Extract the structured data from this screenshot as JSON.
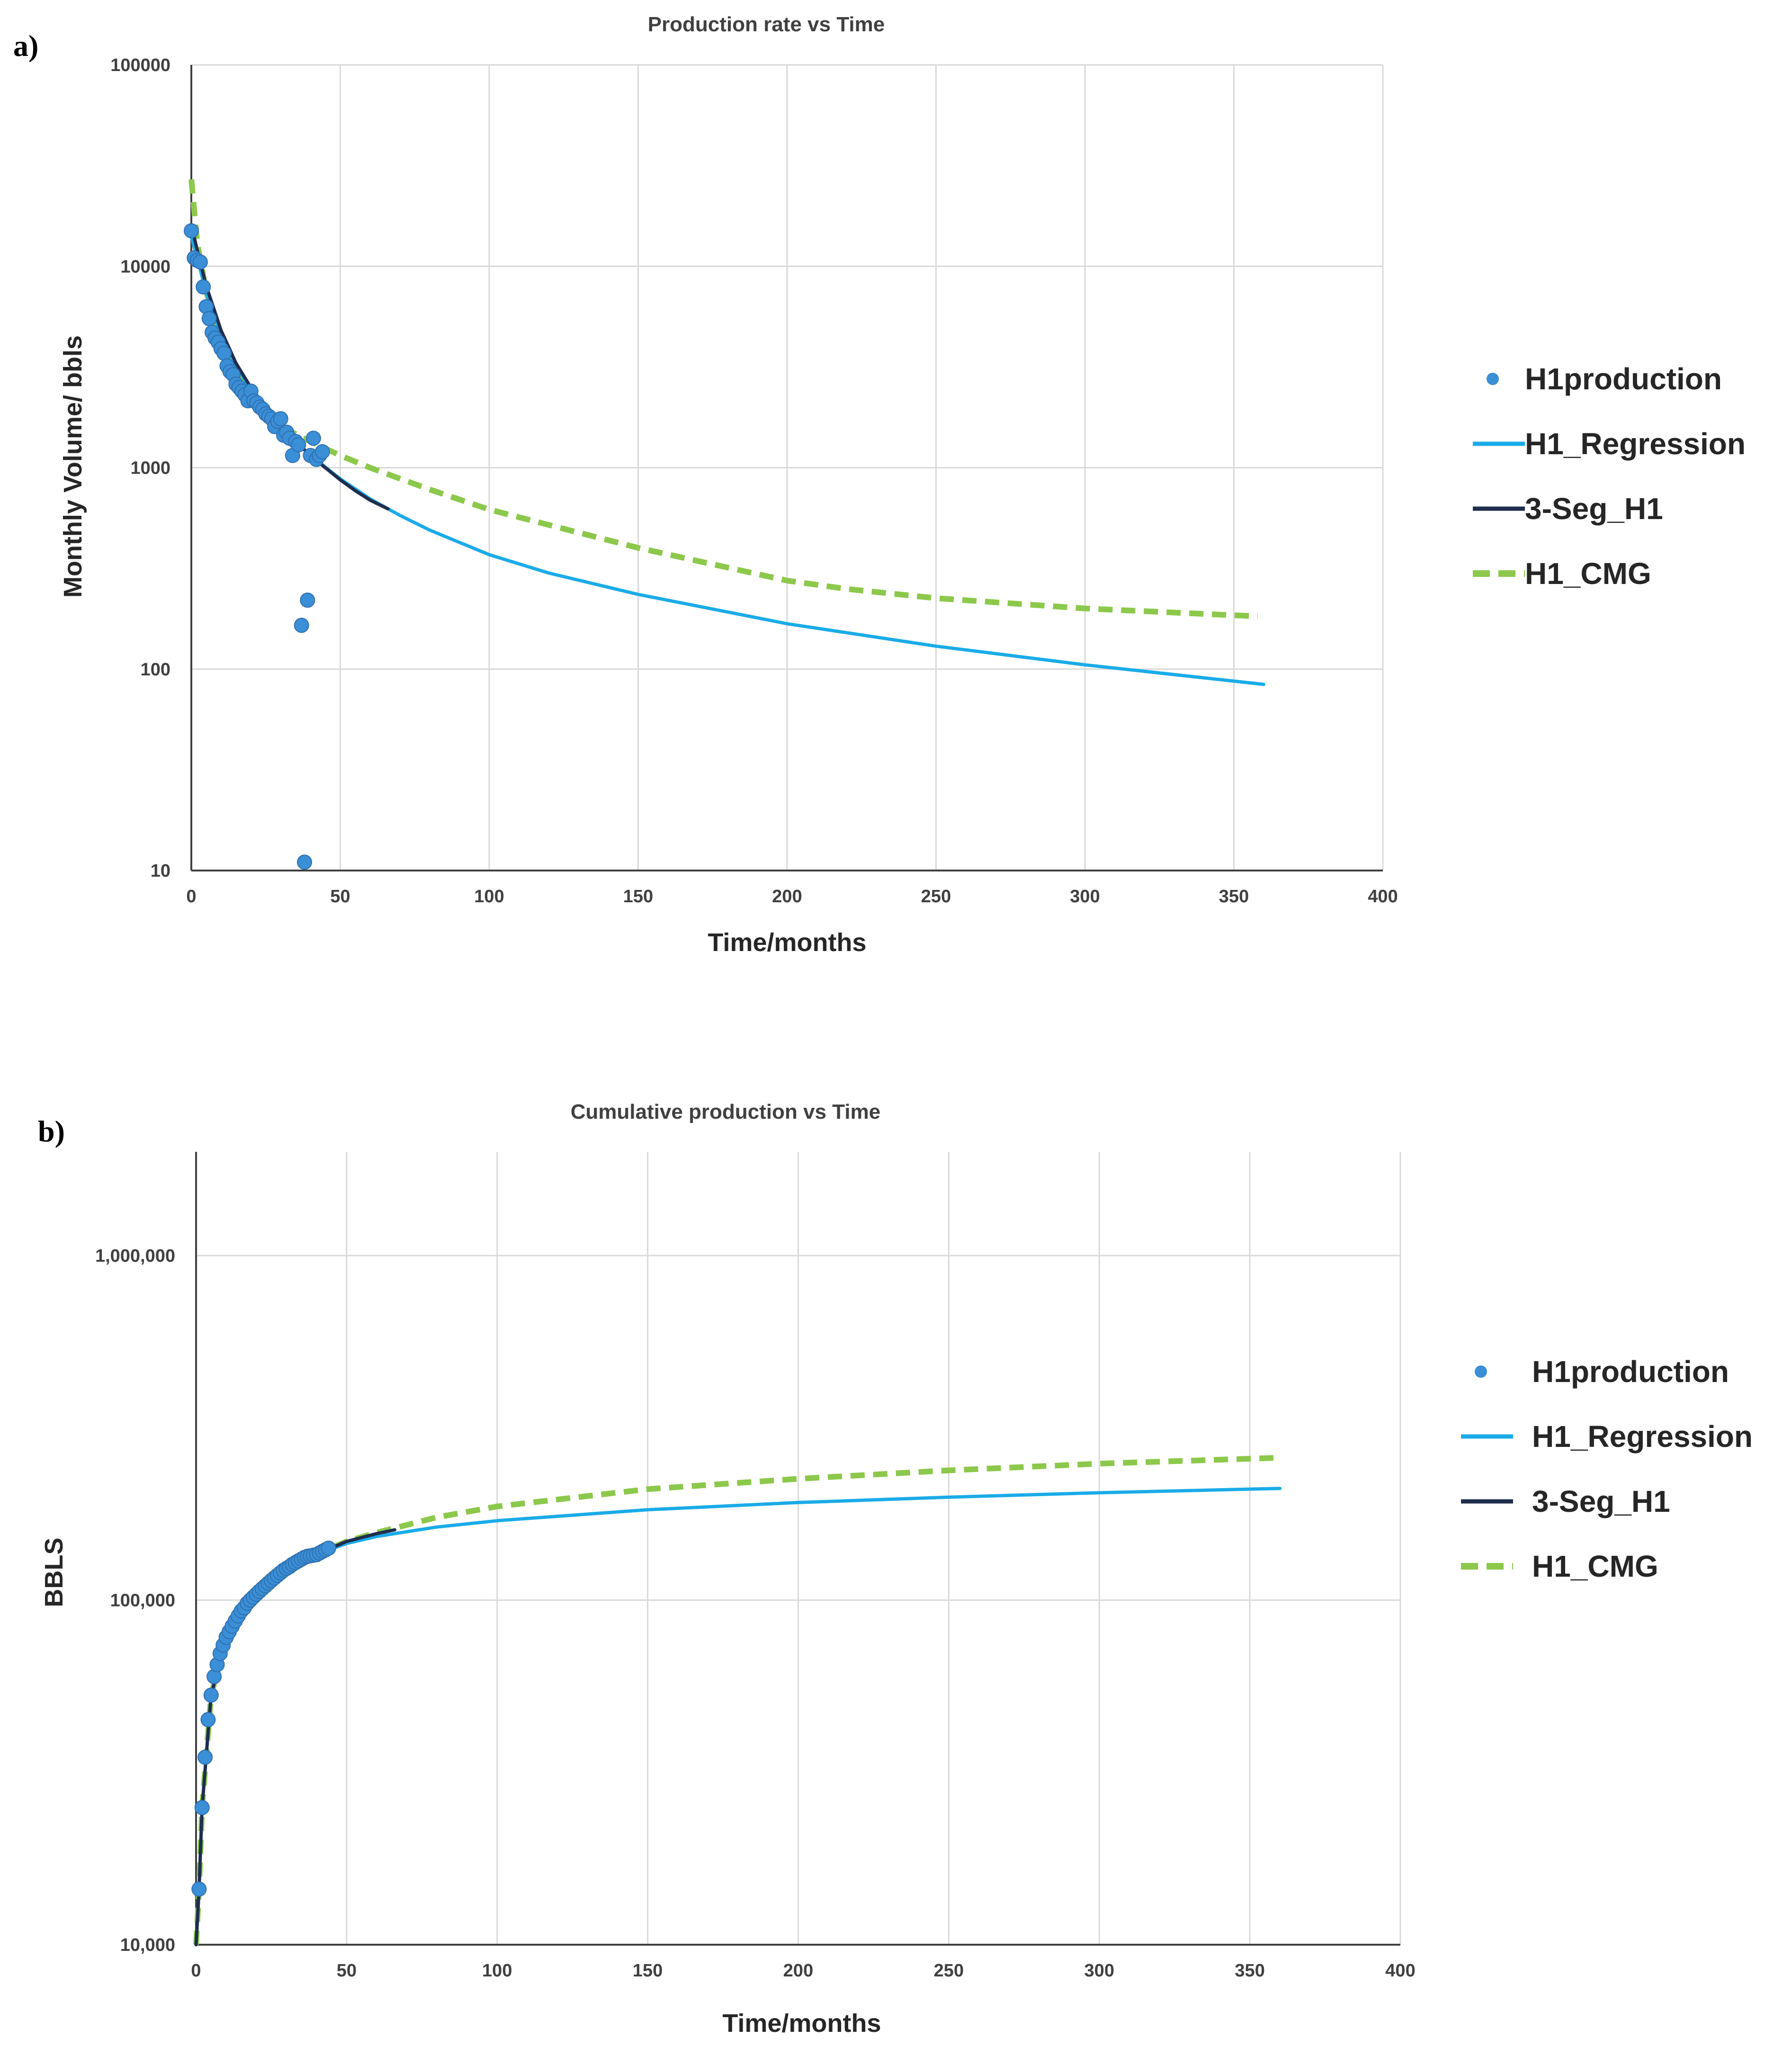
{
  "figure": {
    "panel_a_label": "a)",
    "panel_b_label": "b)"
  },
  "colors": {
    "production": "#3a8fd6",
    "regression": "#1aabe8",
    "three_seg": "#1f2d4e",
    "cmg": "#8cc84b",
    "grid": "#d9d9d9"
  },
  "chart_data": [
    {
      "id": "a",
      "type": "scatter+line",
      "title": "Production rate vs Time",
      "xlabel": "Time/months",
      "ylabel": "Monthly Volume/ bbls",
      "xlim": [
        0,
        400
      ],
      "ylim": [
        10,
        100000
      ],
      "yscale": "log",
      "grid": true,
      "legend_position": "right",
      "x_ticks": [
        "0",
        "50",
        "100",
        "150",
        "200",
        "250",
        "300",
        "350",
        "400"
      ],
      "y_ticks": [
        "10",
        "100",
        "1000",
        "10000",
        "100000"
      ],
      "y_tick_values": [
        10,
        100,
        1000,
        10000,
        100000
      ],
      "series": [
        {
          "name": "H1production",
          "kind": "scatter",
          "color_key": "production",
          "points": [
            [
              0,
              15000
            ],
            [
              1,
              11000
            ],
            [
              2,
              10700
            ],
            [
              3,
              10500
            ],
            [
              4,
              7900
            ],
            [
              5,
              6300
            ],
            [
              6,
              5500
            ],
            [
              7,
              4700
            ],
            [
              8,
              4400
            ],
            [
              9,
              4200
            ],
            [
              10,
              3900
            ],
            [
              11,
              3700
            ],
            [
              12,
              3200
            ],
            [
              13,
              3000
            ],
            [
              14,
              2900
            ],
            [
              15,
              2600
            ],
            [
              16,
              2500
            ],
            [
              17,
              2400
            ],
            [
              18,
              2300
            ],
            [
              19,
              2150
            ],
            [
              20,
              2400
            ],
            [
              21,
              2150
            ],
            [
              22,
              2100
            ],
            [
              23,
              2000
            ],
            [
              24,
              1950
            ],
            [
              25,
              1850
            ],
            [
              26,
              1800
            ],
            [
              27,
              1750
            ],
            [
              28,
              1600
            ],
            [
              29,
              1700
            ],
            [
              30,
              1750
            ],
            [
              31,
              1450
            ],
            [
              32,
              1500
            ],
            [
              33,
              1400
            ],
            [
              34,
              1150
            ],
            [
              35,
              1350
            ],
            [
              36,
              1300
            ],
            [
              37,
              165
            ],
            [
              38,
              11
            ],
            [
              39,
              220
            ],
            [
              40,
              1150
            ],
            [
              41,
              1400
            ],
            [
              42,
              1100
            ],
            [
              43,
              1150
            ],
            [
              44,
              1200
            ]
          ]
        },
        {
          "name": "H1_Regression",
          "kind": "line",
          "color_key": "regression",
          "points": [
            [
              0,
              14000
            ],
            [
              2,
              11000
            ],
            [
              5,
              7400
            ],
            [
              10,
              4500
            ],
            [
              15,
              3200
            ],
            [
              20,
              2450
            ],
            [
              25,
              1950
            ],
            [
              30,
              1600
            ],
            [
              40,
              1150
            ],
            [
              50,
              880
            ],
            [
              60,
              700
            ],
            [
              70,
              580
            ],
            [
              80,
              490
            ],
            [
              100,
              370
            ],
            [
              120,
              300
            ],
            [
              150,
              235
            ],
            [
              200,
              168
            ],
            [
              250,
              130
            ],
            [
              300,
              105
            ],
            [
              360,
              84
            ]
          ]
        },
        {
          "name": "3-Seg_H1",
          "kind": "line",
          "color_key": "three_seg",
          "points": [
            [
              0,
              16000
            ],
            [
              2,
              12000
            ],
            [
              5,
              8000
            ],
            [
              10,
              4800
            ],
            [
              15,
              3300
            ],
            [
              20,
              2500
            ],
            [
              25,
              1950
            ],
            [
              30,
              1600
            ],
            [
              35,
              1350
            ],
            [
              40,
              1150
            ],
            [
              45,
              1000
            ],
            [
              50,
              870
            ],
            [
              55,
              770
            ],
            [
              60,
              690
            ],
            [
              66,
              625
            ]
          ]
        },
        {
          "name": "H1_CMG",
          "kind": "dashed-line",
          "color_key": "cmg",
          "points": [
            [
              0,
              27000
            ],
            [
              2,
              13000
            ],
            [
              5,
              7500
            ],
            [
              10,
              4200
            ],
            [
              15,
              3000
            ],
            [
              20,
              2300
            ],
            [
              25,
              1900
            ],
            [
              30,
              1600
            ],
            [
              40,
              1350
            ],
            [
              50,
              1150
            ],
            [
              60,
              1000
            ],
            [
              80,
              780
            ],
            [
              100,
              620
            ],
            [
              120,
              520
            ],
            [
              150,
              400
            ],
            [
              200,
              275
            ],
            [
              220,
              250
            ],
            [
              250,
              225
            ],
            [
              300,
              200
            ],
            [
              350,
              185
            ],
            [
              358,
              183
            ]
          ]
        }
      ]
    },
    {
      "id": "b",
      "type": "scatter+line",
      "title": "Cumulative production vs Time",
      "xlabel": "Time/months",
      "ylabel": "BBLS",
      "xlim": [
        0,
        400
      ],
      "ylim": [
        10000,
        2000000
      ],
      "yscale": "log",
      "grid": true,
      "legend_position": "right",
      "x_ticks": [
        "0",
        "50",
        "100",
        "150",
        "200",
        "250",
        "300",
        "350",
        "400"
      ],
      "y_ticks": [
        "10,000",
        "100,000",
        "1,000,000"
      ],
      "y_tick_values": [
        10000,
        100000,
        1000000
      ],
      "series": [
        {
          "name": "H1production",
          "kind": "scatter",
          "color_key": "production",
          "points": [
            [
              1,
              14500
            ],
            [
              2,
              25000
            ],
            [
              3,
              35000
            ],
            [
              4,
              45000
            ],
            [
              5,
              53000
            ],
            [
              6,
              60000
            ],
            [
              7,
              65000
            ],
            [
              8,
              70000
            ],
            [
              9,
              74000
            ],
            [
              10,
              78000
            ],
            [
              11,
              81000
            ],
            [
              12,
              84000
            ],
            [
              13,
              87000
            ],
            [
              14,
              90000
            ],
            [
              15,
              93000
            ],
            [
              16,
              95000
            ],
            [
              17,
              98000
            ],
            [
              18,
              100000
            ],
            [
              19,
              102000
            ],
            [
              20,
              104000
            ],
            [
              21,
              106000
            ],
            [
              22,
              108000
            ],
            [
              23,
              110000
            ],
            [
              24,
              112000
            ],
            [
              25,
              114000
            ],
            [
              26,
              116000
            ],
            [
              27,
              118000
            ],
            [
              28,
              120000
            ],
            [
              29,
              122000
            ],
            [
              30,
              123500
            ],
            [
              31,
              125000
            ],
            [
              32,
              127000
            ],
            [
              33,
              128500
            ],
            [
              34,
              130000
            ],
            [
              35,
              131500
            ],
            [
              36,
              133000
            ],
            [
              37,
              134000
            ],
            [
              38,
              134500
            ],
            [
              39,
              135000
            ],
            [
              40,
              135500
            ],
            [
              41,
              137000
            ],
            [
              42,
              138500
            ],
            [
              43,
              140000
            ],
            [
              44,
              141500
            ]
          ]
        },
        {
          "name": "H1_Regression",
          "kind": "line",
          "color_key": "regression",
          "points": [
            [
              0,
              10000
            ],
            [
              1,
              14500
            ],
            [
              2,
              25000
            ],
            [
              5,
              53000
            ],
            [
              10,
              78000
            ],
            [
              15,
              93000
            ],
            [
              20,
              104000
            ],
            [
              30,
              123500
            ],
            [
              40,
              136000
            ],
            [
              50,
              146000
            ],
            [
              60,
              153000
            ],
            [
              80,
              163000
            ],
            [
              100,
              170000
            ],
            [
              150,
              183000
            ],
            [
              200,
              192000
            ],
            [
              250,
              199000
            ],
            [
              300,
              205000
            ],
            [
              360,
              211000
            ]
          ]
        },
        {
          "name": "3-Seg_H1",
          "kind": "line",
          "color_key": "three_seg",
          "points": [
            [
              0,
              10000
            ],
            [
              1,
              14500
            ],
            [
              2,
              25000
            ],
            [
              5,
              53000
            ],
            [
              10,
              78000
            ],
            [
              20,
              104000
            ],
            [
              30,
              123500
            ],
            [
              40,
              136000
            ],
            [
              50,
              148000
            ],
            [
              60,
              156000
            ],
            [
              66,
              160000
            ]
          ]
        },
        {
          "name": "H1_CMG",
          "kind": "dashed-line",
          "color_key": "cmg",
          "points": [
            [
              0,
              10000
            ],
            [
              1,
              14500
            ],
            [
              2,
              25000
            ],
            [
              5,
              53000
            ],
            [
              10,
              78000
            ],
            [
              20,
              104000
            ],
            [
              30,
              123500
            ],
            [
              40,
              136000
            ],
            [
              50,
              148000
            ],
            [
              60,
              157000
            ],
            [
              80,
              174000
            ],
            [
              100,
              187000
            ],
            [
              150,
              210000
            ],
            [
              200,
              225000
            ],
            [
              250,
              238000
            ],
            [
              300,
              249000
            ],
            [
              360,
              259000
            ]
          ]
        }
      ]
    }
  ]
}
